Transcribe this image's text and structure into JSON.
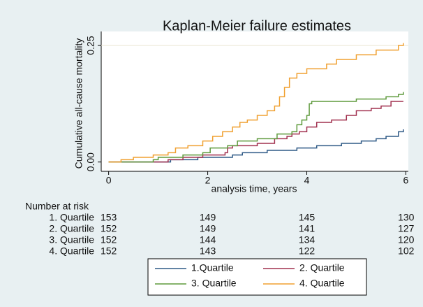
{
  "chart_data": {
    "type": "step",
    "title": "Kaplan-Meier failure estimates",
    "ylabel": "Cumulative all-cause mortality",
    "xlabel": "analysis time, years",
    "xlim": [
      -0.15,
      6.05
    ],
    "ylim": [
      -0.02,
      0.28
    ],
    "xticks": [
      0,
      2,
      4,
      6
    ],
    "yticks": [
      {
        "value": 0,
        "label": "0.00"
      },
      {
        "value": 0.25,
        "label": "0.25"
      }
    ],
    "grid": true,
    "series": [
      {
        "name": "1.Quartile",
        "color": "#2f5a86",
        "x": [
          0,
          1.25,
          1.8,
          2.5,
          2.7,
          3.2,
          3.8,
          4.2,
          4.7,
          5.1,
          5.4,
          5.6,
          5.85,
          5.95
        ],
        "values": [
          0,
          0.005,
          0.01,
          0.015,
          0.02,
          0.025,
          0.03,
          0.035,
          0.04,
          0.045,
          0.05,
          0.055,
          0.065,
          0.07
        ]
      },
      {
        "name": "2. Quartile",
        "color": "#a1304f",
        "x": [
          0,
          1.2,
          1.5,
          1.9,
          2.35,
          2.4,
          2.5,
          3.0,
          3.35,
          3.6,
          3.7,
          3.85,
          4.0,
          4.2,
          4.5,
          4.8,
          5.0,
          5.3,
          5.5,
          5.7,
          5.95
        ],
        "values": [
          0,
          0.005,
          0.01,
          0.015,
          0.02,
          0.03,
          0.035,
          0.04,
          0.05,
          0.055,
          0.06,
          0.065,
          0.075,
          0.085,
          0.09,
          0.1,
          0.11,
          0.115,
          0.12,
          0.13,
          0.13
        ]
      },
      {
        "name": "3. Quartile",
        "color": "#5e9a3c",
        "x": [
          0,
          0.9,
          1.0,
          1.5,
          1.9,
          2.05,
          2.4,
          2.6,
          3.0,
          3.4,
          3.7,
          3.8,
          3.9,
          4.0,
          4.05,
          4.1,
          5.0,
          5.6,
          5.85,
          5.95
        ],
        "values": [
          0,
          0.005,
          0.01,
          0.015,
          0.02,
          0.03,
          0.035,
          0.045,
          0.05,
          0.06,
          0.065,
          0.08,
          0.09,
          0.1,
          0.125,
          0.13,
          0.135,
          0.14,
          0.145,
          0.15
        ]
      },
      {
        "name": "4. Quartile",
        "color": "#f0a030",
        "x": [
          0,
          0.25,
          0.5,
          0.9,
          1.2,
          1.35,
          1.6,
          1.9,
          2.1,
          2.3,
          2.5,
          2.65,
          2.8,
          3.0,
          3.2,
          3.35,
          3.45,
          3.55,
          3.65,
          3.8,
          4.0,
          4.4,
          4.6,
          5.0,
          5.4,
          5.85,
          5.95
        ],
        "values": [
          0,
          0.005,
          0.01,
          0.015,
          0.02,
          0.03,
          0.035,
          0.045,
          0.055,
          0.065,
          0.075,
          0.085,
          0.09,
          0.1,
          0.11,
          0.12,
          0.14,
          0.16,
          0.18,
          0.19,
          0.2,
          0.21,
          0.22,
          0.23,
          0.24,
          0.25,
          0.255
        ]
      }
    ],
    "risk_table": {
      "title": "Number at risk",
      "rows": [
        {
          "label": "1. Quartile",
          "counts": [
            153,
            149,
            145,
            130
          ]
        },
        {
          "label": "2. Quartile",
          "counts": [
            152,
            149,
            141,
            127
          ]
        },
        {
          "label": "3. Quartile",
          "counts": [
            152,
            144,
            134,
            120
          ]
        },
        {
          "label": "4. Quartile",
          "counts": [
            152,
            143,
            122,
            102
          ]
        }
      ]
    }
  }
}
